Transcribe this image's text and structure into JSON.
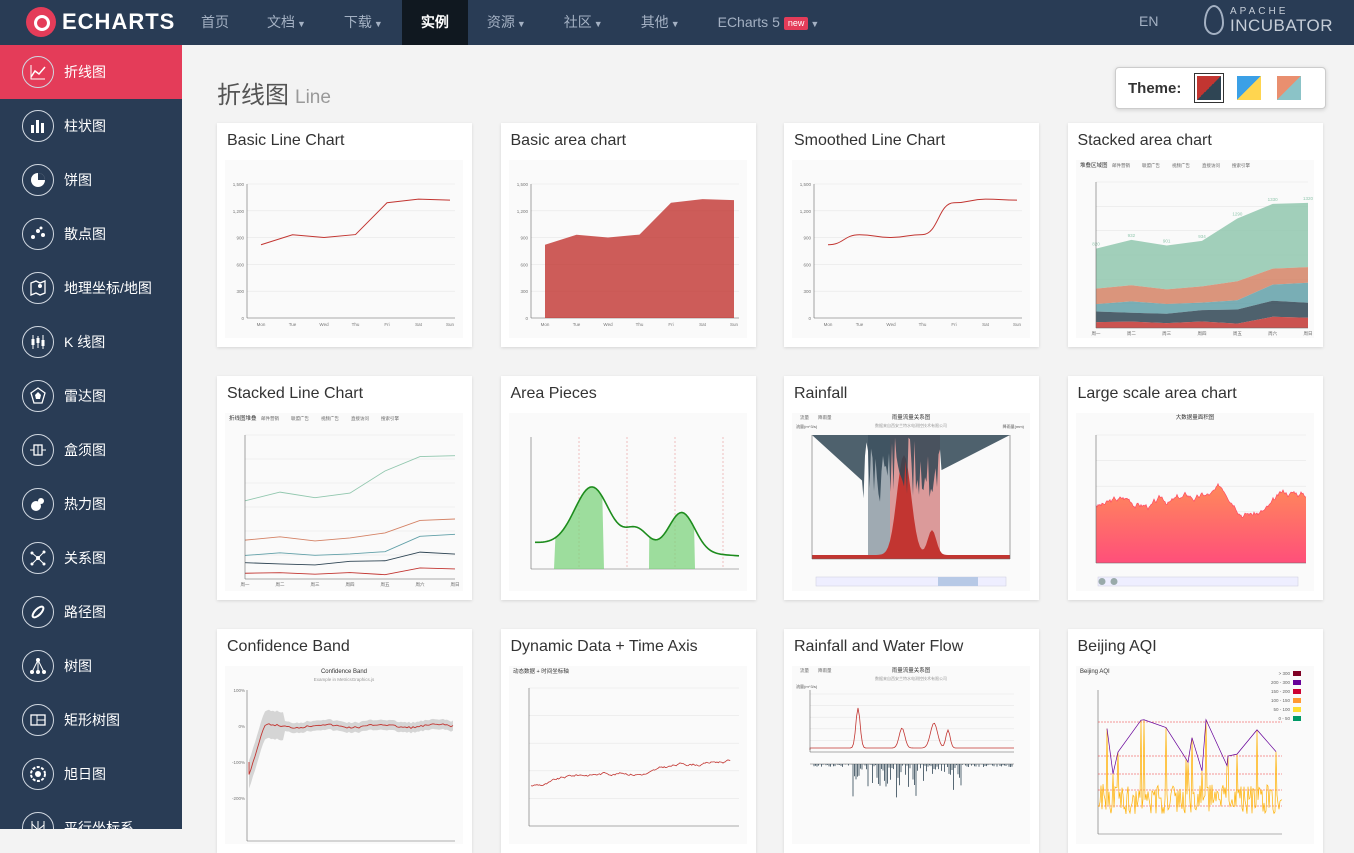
{
  "header": {
    "logo_text": "ECHARTS",
    "nav": [
      {
        "label": "首页",
        "caret": false,
        "active": false
      },
      {
        "label": "文档",
        "caret": true,
        "active": false
      },
      {
        "label": "下载",
        "caret": true,
        "active": false
      },
      {
        "label": "实例",
        "caret": false,
        "active": true
      },
      {
        "label": "资源",
        "caret": true,
        "active": false
      },
      {
        "label": "社区",
        "caret": true,
        "active": false
      },
      {
        "label": "其他",
        "caret": true,
        "active": false
      },
      {
        "label": "ECharts 5",
        "caret": true,
        "active": false,
        "badge": "new"
      }
    ],
    "lang": "EN",
    "apache_small": "APACHE",
    "apache_big": "INCUBATOR"
  },
  "sidebar": {
    "items": [
      {
        "label": "折线图",
        "icon": "line-chart-icon",
        "active": true
      },
      {
        "label": "柱状图",
        "icon": "bar-chart-icon"
      },
      {
        "label": "饼图",
        "icon": "pie-chart-icon"
      },
      {
        "label": "散点图",
        "icon": "scatter-chart-icon"
      },
      {
        "label": "地理坐标/地图",
        "icon": "map-icon"
      },
      {
        "label": "K 线图",
        "icon": "candlestick-icon"
      },
      {
        "label": "雷达图",
        "icon": "radar-icon"
      },
      {
        "label": "盒须图",
        "icon": "boxplot-icon"
      },
      {
        "label": "热力图",
        "icon": "heatmap-icon"
      },
      {
        "label": "关系图",
        "icon": "graph-icon"
      },
      {
        "label": "路径图",
        "icon": "lines-icon"
      },
      {
        "label": "树图",
        "icon": "tree-icon"
      },
      {
        "label": "矩形树图",
        "icon": "treemap-icon"
      },
      {
        "label": "旭日图",
        "icon": "sunburst-icon"
      },
      {
        "label": "平行坐标系",
        "icon": "parallel-icon"
      }
    ]
  },
  "main": {
    "title_zh": "折线图",
    "title_en": "Line",
    "theme_label": "Theme:",
    "themes": [
      {
        "colors": [
          "#c23531",
          "#2f4554"
        ],
        "selected": true
      },
      {
        "colors": [
          "#3ba0e6",
          "#ffd54f"
        ],
        "selected": false
      },
      {
        "colors": [
          "#e98f6f",
          "#8bc3c7"
        ],
        "selected": false
      }
    ],
    "cards": [
      {
        "title": "Basic Line Chart",
        "kind": "basic-line"
      },
      {
        "title": "Basic area chart",
        "kind": "basic-area"
      },
      {
        "title": "Smoothed Line Chart",
        "kind": "smooth-line"
      },
      {
        "title": "Stacked area chart",
        "kind": "stacked-area"
      },
      {
        "title": "Stacked Line Chart",
        "kind": "stacked-line"
      },
      {
        "title": "Area Pieces",
        "kind": "area-pieces"
      },
      {
        "title": "Rainfall",
        "kind": "rainfall"
      },
      {
        "title": "Large scale area chart",
        "kind": "large-area"
      },
      {
        "title": "Confidence Band",
        "kind": "confidence"
      },
      {
        "title": "Dynamic Data + Time Axis",
        "kind": "dynamic"
      },
      {
        "title": "Rainfall and Water Flow",
        "kind": "rainfall-flow"
      },
      {
        "title": "Beijing AQI",
        "kind": "aqi"
      }
    ]
  },
  "thumb_text": {
    "weekdays": [
      "Mon",
      "Tue",
      "Wed",
      "Thu",
      "Fri",
      "Sat",
      "Sun"
    ],
    "y_basic": [
      "1,500",
      "1,200",
      "900",
      "600",
      "300",
      "0"
    ],
    "basic_values": [
      820,
      932,
      901,
      934,
      1290,
      1330,
      1320
    ],
    "stacked_area_title": "堆叠区域图",
    "stacked_area_legend": [
      "邮件营销",
      "联盟广告",
      "视频广告",
      "直接访问",
      "搜索引擎"
    ],
    "stacked_area_labels": [
      "820",
      "932",
      "901",
      "934",
      "1290",
      "1330",
      "1320"
    ],
    "stacked_area_days": [
      "周一",
      "周二",
      "周三",
      "周四",
      "周五",
      "周六",
      "周日"
    ],
    "stacked_line_title": "折线图堆叠",
    "rainfall_title": "雨量流量关系图",
    "rainfall_subtitle": "数据来自西安兰特水电测控技术有限公司",
    "rainfall_legend": [
      "流量",
      "降雨量"
    ],
    "rainfall_axis": [
      "流量(m^3/s)",
      "降雨量(mm)"
    ],
    "large_title": "大数据量面积图",
    "confidence_title": "Confidence Band",
    "confidence_subtitle": "Example in MetricsGraphics.js",
    "confidence_y": [
      "100%",
      "0%",
      "-100%",
      "-200%"
    ],
    "dynamic_title": "动态数据 + 时间坐标轴",
    "aqi_title": "Beijing AQI",
    "aqi_legend": [
      "> 300",
      "200 - 300",
      "150 - 200",
      "100 - 150",
      "50 - 100",
      "0 - 50"
    ],
    "aqi_colors": [
      "#7e0023",
      "#660099",
      "#cc0033",
      "#ff9933",
      "#ffde33",
      "#096"
    ]
  }
}
